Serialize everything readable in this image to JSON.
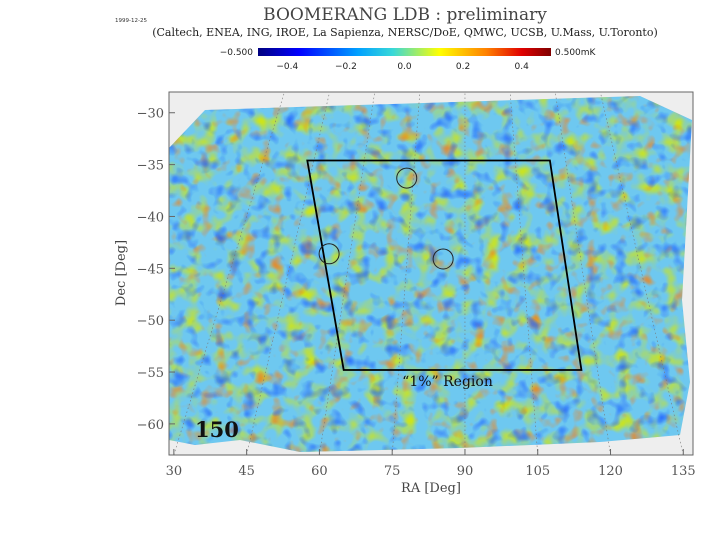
{
  "header": {
    "date": "1999-12-25",
    "title": "BOOMERANG LDB : preliminary",
    "subtitle": "(Caltech, ENEA, ING, IROE, La Sapienza, NERSC/DoE, QMWC, UCSB, U.Mass, U.Toronto)"
  },
  "colorbar": {
    "min_label": "−0.500",
    "max_label": "0.500mK",
    "ticks": [
      -0.4,
      -0.2,
      0.0,
      0.2,
      0.4
    ],
    "tick_labels": [
      "−0.4",
      "−0.2",
      "0.0",
      "0.2",
      "0.4"
    ],
    "range": [
      -0.5,
      0.5
    ],
    "colormap": [
      "#00007f",
      "#0000ff",
      "#00a0ff",
      "#38d8d8",
      "#ffff00",
      "#ff8000",
      "#e00000",
      "#7f0000"
    ]
  },
  "chart_data": {
    "type": "heatmap",
    "title": "BOOMERANG LDB : preliminary",
    "xlabel": "RA [Deg]",
    "ylabel": "Dec [Deg]",
    "xlim": [
      29,
      137
    ],
    "ylim": [
      -63,
      -28
    ],
    "x_ticks": [
      30,
      45,
      60,
      75,
      90,
      105,
      120,
      135
    ],
    "y_ticks": [
      -30,
      -35,
      -40,
      -45,
      -50,
      -55,
      -60
    ],
    "y_tick_labels": [
      "−30",
      "−35",
      "−40",
      "−45",
      "−50",
      "−55",
      "−60"
    ],
    "value_range_mK": [
      -0.5,
      0.5
    ],
    "frequency_label": "150",
    "region": {
      "label": "“1%” Region",
      "corners": [
        [
          57.5,
          -34.6
        ],
        [
          107.5,
          -34.6
        ],
        [
          114,
          -54.8
        ],
        [
          65,
          -54.8
        ]
      ]
    },
    "markers": [
      {
        "ra": 78,
        "dec": -36.3
      },
      {
        "ra": 62,
        "dec": -43.6
      },
      {
        "ra": 85.5,
        "dec": -44.1
      }
    ]
  }
}
